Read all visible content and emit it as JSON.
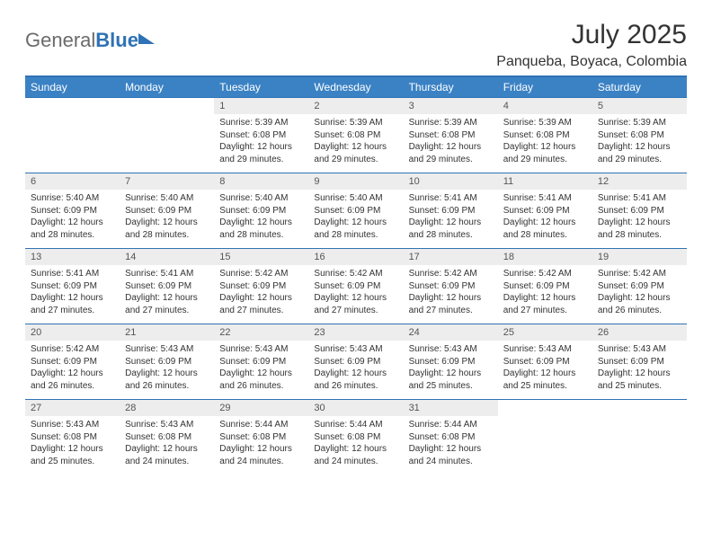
{
  "brand": {
    "part1": "General",
    "part2": "Blue"
  },
  "title": "July 2025",
  "location": "Panqueba, Boyaca, Colombia",
  "colors": {
    "header_bg": "#3b82c4",
    "border": "#2f72b5",
    "daynum_bg": "#ededed",
    "text": "#333333",
    "logo_gray": "#6b6b6b"
  },
  "weekdays": [
    "Sunday",
    "Monday",
    "Tuesday",
    "Wednesday",
    "Thursday",
    "Friday",
    "Saturday"
  ],
  "weeks": [
    {
      "nums": [
        "",
        "",
        "1",
        "2",
        "3",
        "4",
        "5"
      ],
      "cells": [
        null,
        null,
        {
          "sunrise": "Sunrise: 5:39 AM",
          "sunset": "Sunset: 6:08 PM",
          "day1": "Daylight: 12 hours",
          "day2": "and 29 minutes."
        },
        {
          "sunrise": "Sunrise: 5:39 AM",
          "sunset": "Sunset: 6:08 PM",
          "day1": "Daylight: 12 hours",
          "day2": "and 29 minutes."
        },
        {
          "sunrise": "Sunrise: 5:39 AM",
          "sunset": "Sunset: 6:08 PM",
          "day1": "Daylight: 12 hours",
          "day2": "and 29 minutes."
        },
        {
          "sunrise": "Sunrise: 5:39 AM",
          "sunset": "Sunset: 6:08 PM",
          "day1": "Daylight: 12 hours",
          "day2": "and 29 minutes."
        },
        {
          "sunrise": "Sunrise: 5:39 AM",
          "sunset": "Sunset: 6:08 PM",
          "day1": "Daylight: 12 hours",
          "day2": "and 29 minutes."
        }
      ]
    },
    {
      "nums": [
        "6",
        "7",
        "8",
        "9",
        "10",
        "11",
        "12"
      ],
      "cells": [
        {
          "sunrise": "Sunrise: 5:40 AM",
          "sunset": "Sunset: 6:09 PM",
          "day1": "Daylight: 12 hours",
          "day2": "and 28 minutes."
        },
        {
          "sunrise": "Sunrise: 5:40 AM",
          "sunset": "Sunset: 6:09 PM",
          "day1": "Daylight: 12 hours",
          "day2": "and 28 minutes."
        },
        {
          "sunrise": "Sunrise: 5:40 AM",
          "sunset": "Sunset: 6:09 PM",
          "day1": "Daylight: 12 hours",
          "day2": "and 28 minutes."
        },
        {
          "sunrise": "Sunrise: 5:40 AM",
          "sunset": "Sunset: 6:09 PM",
          "day1": "Daylight: 12 hours",
          "day2": "and 28 minutes."
        },
        {
          "sunrise": "Sunrise: 5:41 AM",
          "sunset": "Sunset: 6:09 PM",
          "day1": "Daylight: 12 hours",
          "day2": "and 28 minutes."
        },
        {
          "sunrise": "Sunrise: 5:41 AM",
          "sunset": "Sunset: 6:09 PM",
          "day1": "Daylight: 12 hours",
          "day2": "and 28 minutes."
        },
        {
          "sunrise": "Sunrise: 5:41 AM",
          "sunset": "Sunset: 6:09 PM",
          "day1": "Daylight: 12 hours",
          "day2": "and 28 minutes."
        }
      ]
    },
    {
      "nums": [
        "13",
        "14",
        "15",
        "16",
        "17",
        "18",
        "19"
      ],
      "cells": [
        {
          "sunrise": "Sunrise: 5:41 AM",
          "sunset": "Sunset: 6:09 PM",
          "day1": "Daylight: 12 hours",
          "day2": "and 27 minutes."
        },
        {
          "sunrise": "Sunrise: 5:41 AM",
          "sunset": "Sunset: 6:09 PM",
          "day1": "Daylight: 12 hours",
          "day2": "and 27 minutes."
        },
        {
          "sunrise": "Sunrise: 5:42 AM",
          "sunset": "Sunset: 6:09 PM",
          "day1": "Daylight: 12 hours",
          "day2": "and 27 minutes."
        },
        {
          "sunrise": "Sunrise: 5:42 AM",
          "sunset": "Sunset: 6:09 PM",
          "day1": "Daylight: 12 hours",
          "day2": "and 27 minutes."
        },
        {
          "sunrise": "Sunrise: 5:42 AM",
          "sunset": "Sunset: 6:09 PM",
          "day1": "Daylight: 12 hours",
          "day2": "and 27 minutes."
        },
        {
          "sunrise": "Sunrise: 5:42 AM",
          "sunset": "Sunset: 6:09 PM",
          "day1": "Daylight: 12 hours",
          "day2": "and 27 minutes."
        },
        {
          "sunrise": "Sunrise: 5:42 AM",
          "sunset": "Sunset: 6:09 PM",
          "day1": "Daylight: 12 hours",
          "day2": "and 26 minutes."
        }
      ]
    },
    {
      "nums": [
        "20",
        "21",
        "22",
        "23",
        "24",
        "25",
        "26"
      ],
      "cells": [
        {
          "sunrise": "Sunrise: 5:42 AM",
          "sunset": "Sunset: 6:09 PM",
          "day1": "Daylight: 12 hours",
          "day2": "and 26 minutes."
        },
        {
          "sunrise": "Sunrise: 5:43 AM",
          "sunset": "Sunset: 6:09 PM",
          "day1": "Daylight: 12 hours",
          "day2": "and 26 minutes."
        },
        {
          "sunrise": "Sunrise: 5:43 AM",
          "sunset": "Sunset: 6:09 PM",
          "day1": "Daylight: 12 hours",
          "day2": "and 26 minutes."
        },
        {
          "sunrise": "Sunrise: 5:43 AM",
          "sunset": "Sunset: 6:09 PM",
          "day1": "Daylight: 12 hours",
          "day2": "and 26 minutes."
        },
        {
          "sunrise": "Sunrise: 5:43 AM",
          "sunset": "Sunset: 6:09 PM",
          "day1": "Daylight: 12 hours",
          "day2": "and 25 minutes."
        },
        {
          "sunrise": "Sunrise: 5:43 AM",
          "sunset": "Sunset: 6:09 PM",
          "day1": "Daylight: 12 hours",
          "day2": "and 25 minutes."
        },
        {
          "sunrise": "Sunrise: 5:43 AM",
          "sunset": "Sunset: 6:09 PM",
          "day1": "Daylight: 12 hours",
          "day2": "and 25 minutes."
        }
      ]
    },
    {
      "nums": [
        "27",
        "28",
        "29",
        "30",
        "31",
        "",
        ""
      ],
      "cells": [
        {
          "sunrise": "Sunrise: 5:43 AM",
          "sunset": "Sunset: 6:08 PM",
          "day1": "Daylight: 12 hours",
          "day2": "and 25 minutes."
        },
        {
          "sunrise": "Sunrise: 5:43 AM",
          "sunset": "Sunset: 6:08 PM",
          "day1": "Daylight: 12 hours",
          "day2": "and 24 minutes."
        },
        {
          "sunrise": "Sunrise: 5:44 AM",
          "sunset": "Sunset: 6:08 PM",
          "day1": "Daylight: 12 hours",
          "day2": "and 24 minutes."
        },
        {
          "sunrise": "Sunrise: 5:44 AM",
          "sunset": "Sunset: 6:08 PM",
          "day1": "Daylight: 12 hours",
          "day2": "and 24 minutes."
        },
        {
          "sunrise": "Sunrise: 5:44 AM",
          "sunset": "Sunset: 6:08 PM",
          "day1": "Daylight: 12 hours",
          "day2": "and 24 minutes."
        },
        null,
        null
      ]
    }
  ]
}
